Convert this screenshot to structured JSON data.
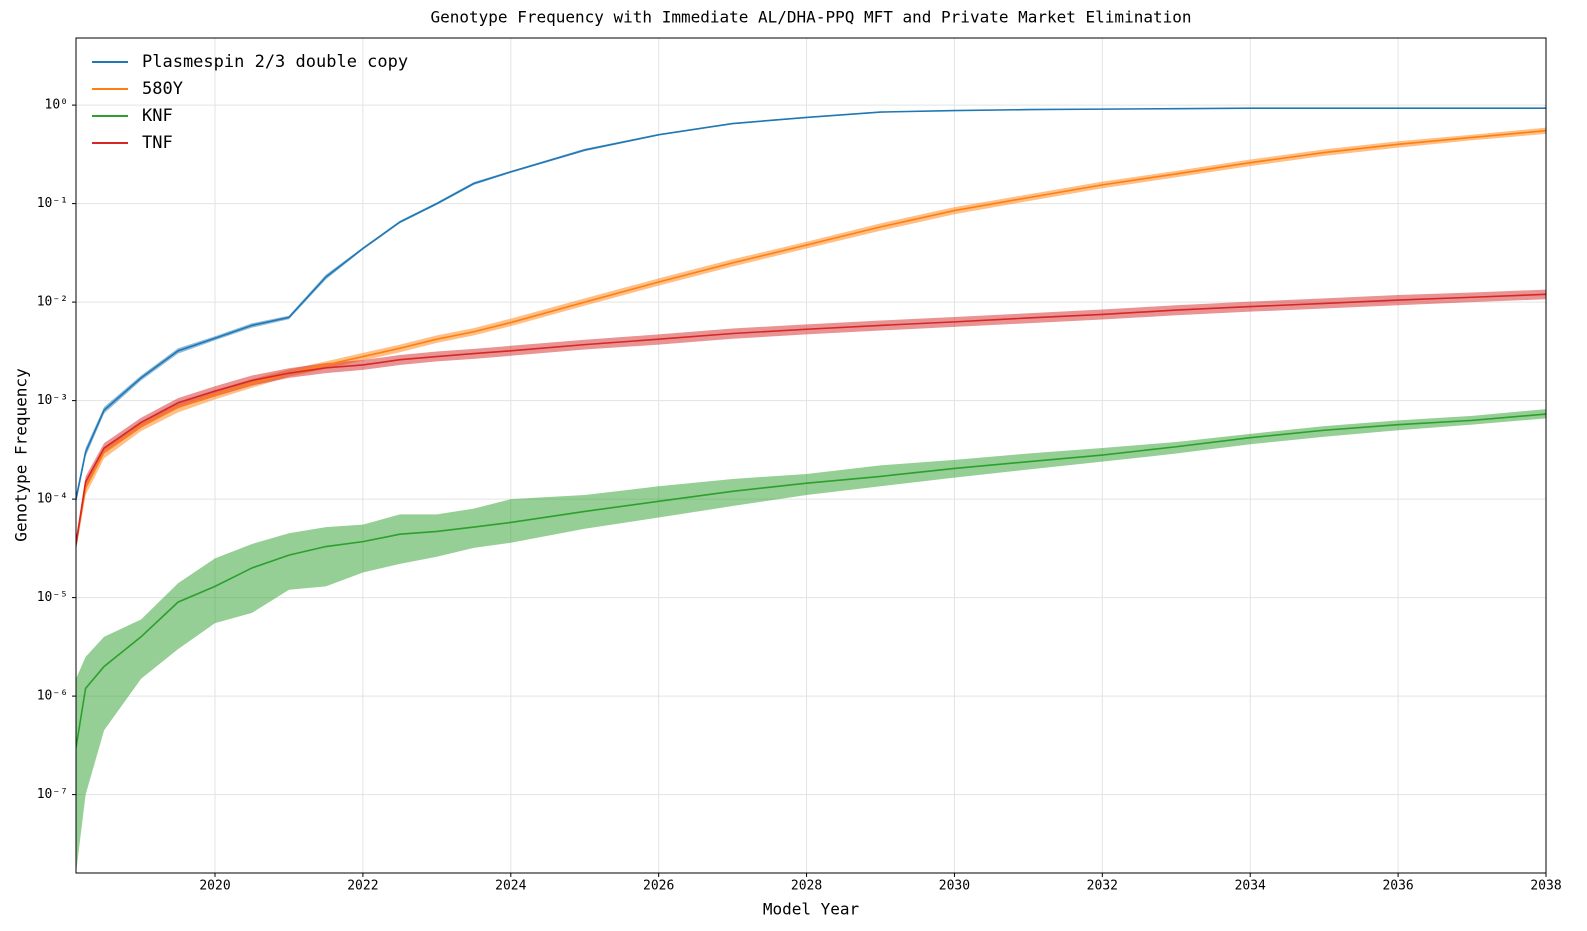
{
  "chart_data": {
    "type": "line",
    "title": "Genotype Frequency with Immediate AL/DHA-PPQ MFT and Private Market Elimination",
    "x_label": "Model Year",
    "y_label": "Genotype Frequency",
    "log_y": true,
    "grid": true,
    "legend": "upper left",
    "xlim": [
      2018.12,
      2038
    ],
    "xticks": [
      2020,
      2022,
      2024,
      2026,
      2028,
      2030,
      2032,
      2034,
      2036,
      2038
    ],
    "ylim": [
      1.6e-08,
      4.8
    ],
    "yticks": [
      {
        "value": 1e-07,
        "label": "10⁻⁷"
      },
      {
        "value": 1e-06,
        "label": "10⁻⁶"
      },
      {
        "value": 1e-05,
        "label": "10⁻⁵"
      },
      {
        "value": 0.0001,
        "label": "10⁻⁴"
      },
      {
        "value": 0.001,
        "label": "10⁻³"
      },
      {
        "value": 0.01,
        "label": "10⁻²"
      },
      {
        "value": 0.1,
        "label": "10⁻¹"
      },
      {
        "value": 1,
        "label": "10⁰"
      }
    ],
    "x": [
      2018.12,
      2018.25,
      2018.5,
      2019,
      2019.5,
      2020,
      2020.5,
      2021,
      2021.5,
      2022,
      2022.5,
      2023,
      2023.5,
      2024,
      2025,
      2026,
      2027,
      2028,
      2029,
      2030,
      2031,
      2032,
      2033,
      2034,
      2035,
      2036,
      2037,
      2038
    ],
    "series": [
      {
        "name": "Plasmespin 2/3 double copy",
        "color": "#1f77b4",
        "values": [
          0.0001,
          0.0003,
          0.0008,
          0.0017,
          0.0032,
          0.0043,
          0.0058,
          0.007,
          0.018,
          0.035,
          0.065,
          0.1,
          0.16,
          0.21,
          0.35,
          0.5,
          0.65,
          0.75,
          0.85,
          0.88,
          0.9,
          0.91,
          0.92,
          0.93,
          0.93,
          0.93,
          0.93,
          0.93
        ],
        "lower": [
          9e-05,
          0.00027,
          0.00074,
          0.0016,
          0.003,
          0.0041,
          0.0055,
          0.0067,
          0.017,
          0.034,
          0.063,
          0.097,
          0.155,
          0.205,
          0.34,
          0.49,
          0.64,
          0.74,
          0.84,
          0.87,
          0.89,
          0.9,
          0.91,
          0.92,
          0.92,
          0.92,
          0.92,
          0.92
        ],
        "upper": [
          0.00011,
          0.00033,
          0.00086,
          0.0018,
          0.0034,
          0.0045,
          0.0061,
          0.0073,
          0.019,
          0.036,
          0.067,
          0.103,
          0.165,
          0.215,
          0.36,
          0.51,
          0.66,
          0.76,
          0.86,
          0.89,
          0.91,
          0.92,
          0.93,
          0.94,
          0.94,
          0.94,
          0.94,
          0.94
        ]
      },
      {
        "name": "580Y",
        "color": "#ff7f0e",
        "values": [
          3.5e-05,
          0.00013,
          0.0003,
          0.00055,
          0.00085,
          0.00115,
          0.0015,
          0.0019,
          0.0023,
          0.0028,
          0.0034,
          0.0042,
          0.005,
          0.0062,
          0.01,
          0.016,
          0.025,
          0.038,
          0.058,
          0.085,
          0.115,
          0.155,
          0.2,
          0.26,
          0.33,
          0.4,
          0.47,
          0.55
        ],
        "lower": [
          3e-05,
          0.00011,
          0.00026,
          0.00049,
          0.00076,
          0.00103,
          0.00135,
          0.00175,
          0.0021,
          0.00255,
          0.0031,
          0.00385,
          0.0046,
          0.0057,
          0.0092,
          0.0147,
          0.023,
          0.035,
          0.053,
          0.078,
          0.106,
          0.143,
          0.185,
          0.24,
          0.305,
          0.37,
          0.44,
          0.51
        ],
        "upper": [
          4e-05,
          0.000145,
          0.00033,
          0.00061,
          0.00094,
          0.00127,
          0.00165,
          0.00207,
          0.0025,
          0.00305,
          0.0037,
          0.0046,
          0.00545,
          0.0068,
          0.0109,
          0.0174,
          0.0272,
          0.041,
          0.063,
          0.092,
          0.124,
          0.167,
          0.215,
          0.28,
          0.355,
          0.43,
          0.5,
          0.59
        ]
      },
      {
        "name": "KNF",
        "color": "#2ca02c",
        "values": [
          3e-07,
          1.2e-06,
          2e-06,
          4e-06,
          9e-06,
          1.3e-05,
          2e-05,
          2.7e-05,
          3.3e-05,
          3.7e-05,
          4.4e-05,
          4.7e-05,
          5.2e-05,
          5.8e-05,
          7.5e-05,
          9.5e-05,
          0.00012,
          0.000145,
          0.00017,
          0.000205,
          0.00024,
          0.00028,
          0.00034,
          0.00042,
          0.0005,
          0.00057,
          0.00063,
          0.00073
        ],
        "lower": [
          1.6e-08,
          1e-07,
          4.5e-07,
          1.5e-06,
          3e-06,
          5.5e-06,
          7e-06,
          1.2e-05,
          1.3e-05,
          1.8e-05,
          2.2e-05,
          2.6e-05,
          3.2e-05,
          3.6e-05,
          5e-05,
          6.5e-05,
          8.5e-05,
          0.00011,
          0.000135,
          0.000165,
          0.0002,
          0.00024,
          0.00029,
          0.00036,
          0.00043,
          0.0005,
          0.00057,
          0.00066
        ],
        "upper": [
          1.5e-06,
          2.5e-06,
          4e-06,
          6e-06,
          1.4e-05,
          2.5e-05,
          3.5e-05,
          4.5e-05,
          5.2e-05,
          5.5e-05,
          7e-05,
          7e-05,
          8e-05,
          0.0001,
          0.00011,
          0.000135,
          0.00016,
          0.00018,
          0.00022,
          0.00025,
          0.00029,
          0.00033,
          0.00038,
          0.00046,
          0.00055,
          0.00063,
          0.0007,
          0.00082
        ]
      },
      {
        "name": "TNF",
        "color": "#d62728",
        "values": [
          3.5e-05,
          0.00015,
          0.00033,
          0.0006,
          0.00095,
          0.00125,
          0.0016,
          0.0019,
          0.00215,
          0.0023,
          0.0026,
          0.0028,
          0.003,
          0.0032,
          0.0037,
          0.0042,
          0.0048,
          0.0053,
          0.0058,
          0.0063,
          0.0069,
          0.0075,
          0.0083,
          0.009,
          0.0097,
          0.0105,
          0.0112,
          0.012
        ],
        "lower": [
          3e-05,
          0.00013,
          0.00029,
          0.00053,
          0.00084,
          0.0011,
          0.00142,
          0.0017,
          0.0019,
          0.00205,
          0.0023,
          0.0025,
          0.00265,
          0.00285,
          0.0033,
          0.0037,
          0.00425,
          0.0047,
          0.00515,
          0.0056,
          0.0061,
          0.00665,
          0.00735,
          0.008,
          0.0086,
          0.0093,
          0.01,
          0.0107
        ],
        "upper": [
          4e-05,
          0.00017,
          0.00037,
          0.00067,
          0.00106,
          0.0014,
          0.0018,
          0.00213,
          0.0024,
          0.00258,
          0.0029,
          0.00315,
          0.00335,
          0.0036,
          0.00415,
          0.0047,
          0.0054,
          0.00595,
          0.0065,
          0.00705,
          0.0077,
          0.0084,
          0.0093,
          0.0101,
          0.0109,
          0.0118,
          0.0125,
          0.0134
        ]
      }
    ]
  }
}
